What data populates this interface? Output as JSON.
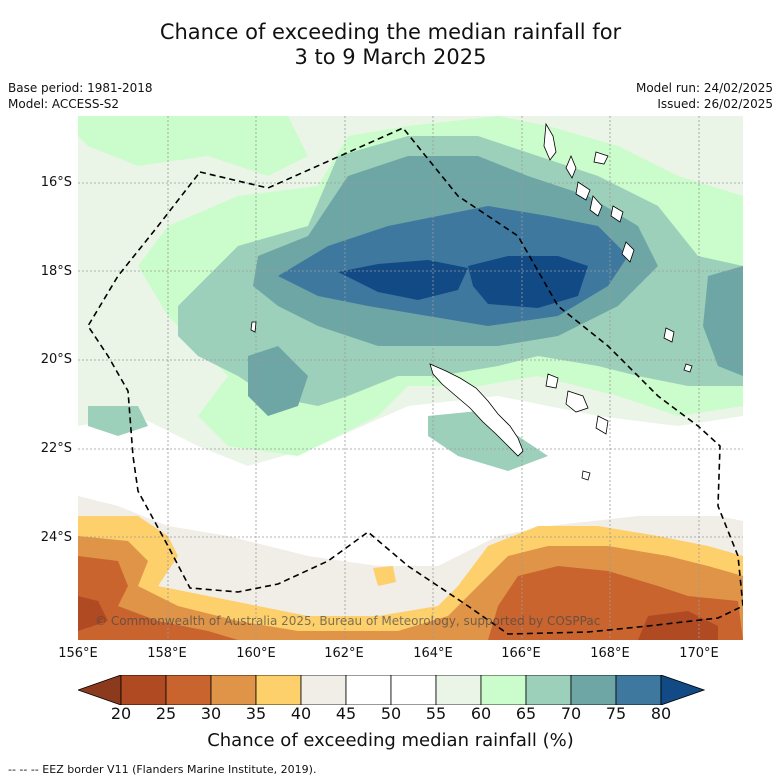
{
  "title_line1": "Chance of exceeding the median rainfall for",
  "title_line2": "3 to 9 March 2025",
  "meta": {
    "base_period": "Base period: 1981-2018",
    "model": "Model: ACCESS-S2",
    "model_run": "Model run: 24/02/2025",
    "issued": "Issued: 26/02/2025"
  },
  "latitude_labels": [
    "16°S",
    "18°S",
    "20°S",
    "22°S",
    "24°S"
  ],
  "longitude_labels": [
    "156°E",
    "158°E",
    "160°E",
    "162°E",
    "164°E",
    "166°E",
    "168°E",
    "170°E"
  ],
  "copyright": "© Commonwealth of Australia 2025, Bureau of Meteorology, supported by COSPPac",
  "colorbar": {
    "ticks": [
      "20",
      "25",
      "30",
      "35",
      "40",
      "45",
      "50",
      "55",
      "60",
      "65",
      "70",
      "75",
      "80"
    ],
    "colors": [
      "#8c3a1e",
      "#b04a22",
      "#c9642f",
      "#e09448",
      "#fdd06c",
      "#f1ede7",
      "#ffffff",
      "#ffffff",
      "#eaf5e8",
      "#cbfccb",
      "#9dd0ba",
      "#6ea6a6",
      "#3f789e",
      "#124a86"
    ],
    "title": "Chance of exceeding median rainfall (%)"
  },
  "footnote": "--  --  -- EEZ border V11 (Flanders Marine Institute, 2019)."
}
